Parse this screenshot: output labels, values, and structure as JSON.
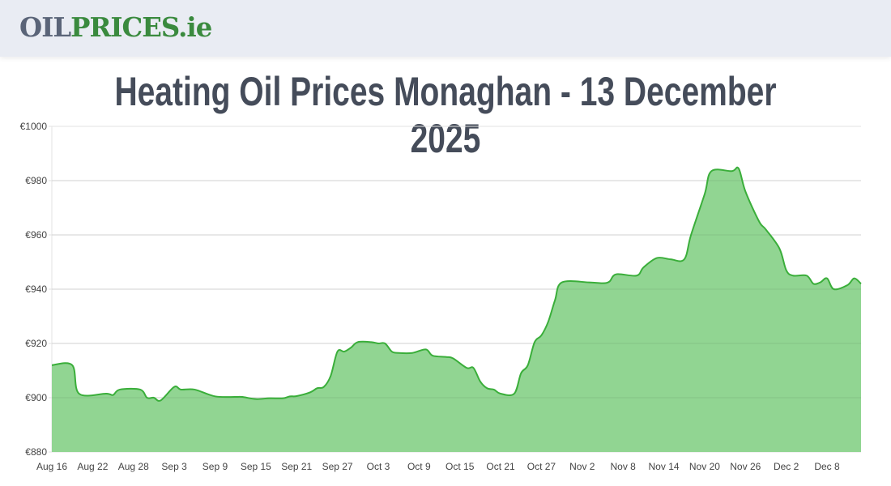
{
  "header": {
    "logo_part1": "OIL",
    "logo_part2": "PRICES.ie"
  },
  "page_title": "Heating Oil Prices Monaghan - 13 December 2025",
  "chart_data": {
    "type": "area",
    "title": "Heating Oil Prices Monaghan - 13 December 2025",
    "xlabel": "",
    "ylabel": "",
    "ylim": [
      880,
      1000
    ],
    "y_ticks": [
      "€880",
      "€900",
      "€920",
      "€940",
      "€960",
      "€980",
      "€1000"
    ],
    "y_tick_values": [
      880,
      900,
      920,
      940,
      960,
      980,
      1000
    ],
    "x_ticks": [
      "Aug 16",
      "Aug 22",
      "Aug 28",
      "Sep 3",
      "Sep 9",
      "Sep 15",
      "Sep 21",
      "Sep 27",
      "Oct 3",
      "Oct 9",
      "Oct 15",
      "Oct 21",
      "Oct 27",
      "Nov 2",
      "Nov 8",
      "Nov 14",
      "Nov 20",
      "Nov 26",
      "Dec 2",
      "Dec 8"
    ],
    "x_range": [
      "Aug 16",
      "Dec 13"
    ],
    "grid": true,
    "colors": {
      "line": "#3aae3a",
      "fill": "#91d592"
    },
    "points": [
      [
        "Aug 16",
        912
      ],
      [
        "Aug 19",
        912
      ],
      [
        "Aug 20",
        901.5
      ],
      [
        "Aug 24",
        901.5
      ],
      [
        "Aug 25",
        901
      ],
      [
        "Aug 26",
        903
      ],
      [
        "Aug 29",
        903
      ],
      [
        "Aug 30",
        900
      ],
      [
        "Aug 31",
        900
      ],
      [
        "Sep 1",
        899
      ],
      [
        "Sep 3",
        904
      ],
      [
        "Sep 4",
        903
      ],
      [
        "Sep 6",
        903
      ],
      [
        "Sep 9",
        900.5
      ],
      [
        "Sep 12",
        900.3
      ],
      [
        "Sep 13",
        900.3
      ],
      [
        "Sep 15",
        899.5
      ],
      [
        "Sep 17",
        899.8
      ],
      [
        "Sep 19",
        899.8
      ],
      [
        "Sep 20",
        900.5
      ],
      [
        "Sep 21",
        900.6
      ],
      [
        "Sep 23",
        902
      ],
      [
        "Sep 24",
        903.5
      ],
      [
        "Sep 25",
        904
      ],
      [
        "Sep 26",
        908
      ],
      [
        "Sep 27",
        917
      ],
      [
        "Sep 28",
        917
      ],
      [
        "Sep 29",
        918.5
      ],
      [
        "Sep 30",
        920.5
      ],
      [
        "Oct 2",
        920.5
      ],
      [
        "Oct 3",
        920
      ],
      [
        "Oct 4",
        920
      ],
      [
        "Oct 5",
        917
      ],
      [
        "Oct 6",
        916.5
      ],
      [
        "Oct 8",
        916.5
      ],
      [
        "Oct 10",
        917.8
      ],
      [
        "Oct 11",
        915.5
      ],
      [
        "Oct 13",
        915
      ],
      [
        "Oct 14",
        914.5
      ],
      [
        "Oct 16",
        911
      ],
      [
        "Oct 17",
        911
      ],
      [
        "Oct 18",
        906
      ],
      [
        "Oct 19",
        903.5
      ],
      [
        "Oct 20",
        903
      ],
      [
        "Oct 21",
        901.5
      ],
      [
        "Oct 23",
        901.5
      ],
      [
        "Oct 24",
        909
      ],
      [
        "Oct 25",
        912
      ],
      [
        "Oct 26",
        920.5
      ],
      [
        "Oct 27",
        923
      ],
      [
        "Oct 28",
        928
      ],
      [
        "Oct 29",
        936
      ],
      [
        "Oct 30",
        942.5
      ],
      [
        "Nov 3",
        942.5
      ],
      [
        "Nov 5",
        942.2
      ],
      [
        "Nov 6",
        942.8
      ],
      [
        "Nov 7",
        945.5
      ],
      [
        "Nov 10",
        945
      ],
      [
        "Nov 11",
        948
      ],
      [
        "Nov 13",
        951.5
      ],
      [
        "Nov 15",
        951
      ],
      [
        "Nov 17",
        951
      ],
      [
        "Nov 18",
        960
      ],
      [
        "Nov 20",
        975
      ],
      [
        "Nov 21",
        983.5
      ],
      [
        "Nov 24",
        983.5
      ],
      [
        "Nov 25",
        984.5
      ],
      [
        "Nov 26",
        976
      ],
      [
        "Nov 28",
        965
      ],
      [
        "Nov 29",
        962
      ],
      [
        "Dec 1",
        955
      ],
      [
        "Dec 2",
        947
      ],
      [
        "Dec 3",
        945
      ],
      [
        "Dec 5",
        945
      ],
      [
        "Dec 6",
        942
      ],
      [
        "Dec 7",
        942.5
      ],
      [
        "Dec 8",
        944
      ],
      [
        "Dec 9",
        940
      ],
      [
        "Dec 11",
        941.5
      ],
      [
        "Dec 12",
        944
      ],
      [
        "Dec 13",
        942
      ]
    ]
  }
}
